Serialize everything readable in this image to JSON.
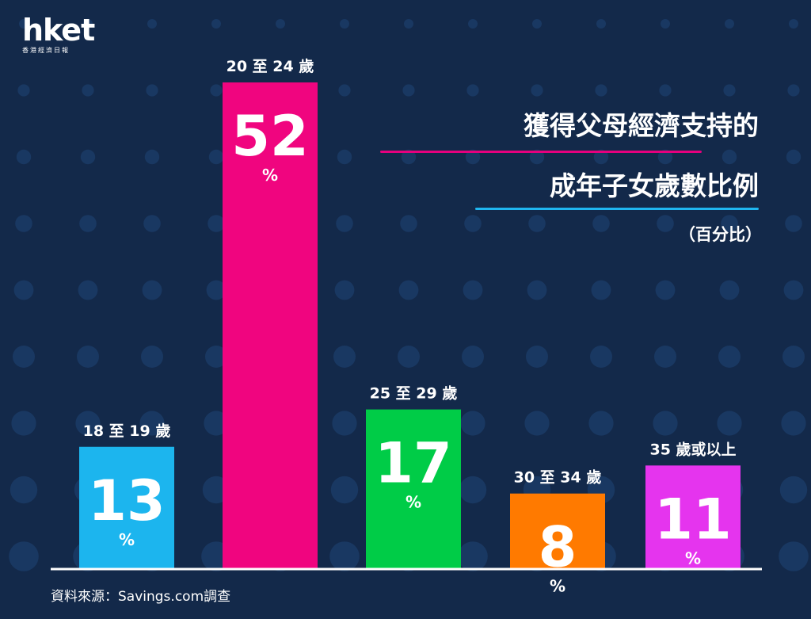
{
  "logo": {
    "main": "hket",
    "sub": "香港經濟日報"
  },
  "title": {
    "line1": "獲得父母經濟支持的",
    "line2": "成年子女歲數比例"
  },
  "unit_note": "（百分比）",
  "source": "資料來源：Savings.com調查",
  "colors": {
    "background": "#13294a",
    "dots": "#1b3b66",
    "axis": "#ffffff"
  },
  "chart_data": {
    "type": "bar",
    "categories": [
      "18 至 19 歲",
      "20 至 24 歲",
      "25 至 29 歲",
      "30 至 34 歲",
      "35 歲或以上"
    ],
    "values": [
      13,
      52,
      17,
      8,
      11
    ],
    "value_labels": [
      "13",
      "52",
      "17",
      "8",
      "11"
    ],
    "unit": "%",
    "colors": [
      "#1cb5ee",
      "#f0057f",
      "#00cc47",
      "#ff7a00",
      "#e534ee"
    ],
    "ylim": [
      0,
      52
    ]
  }
}
